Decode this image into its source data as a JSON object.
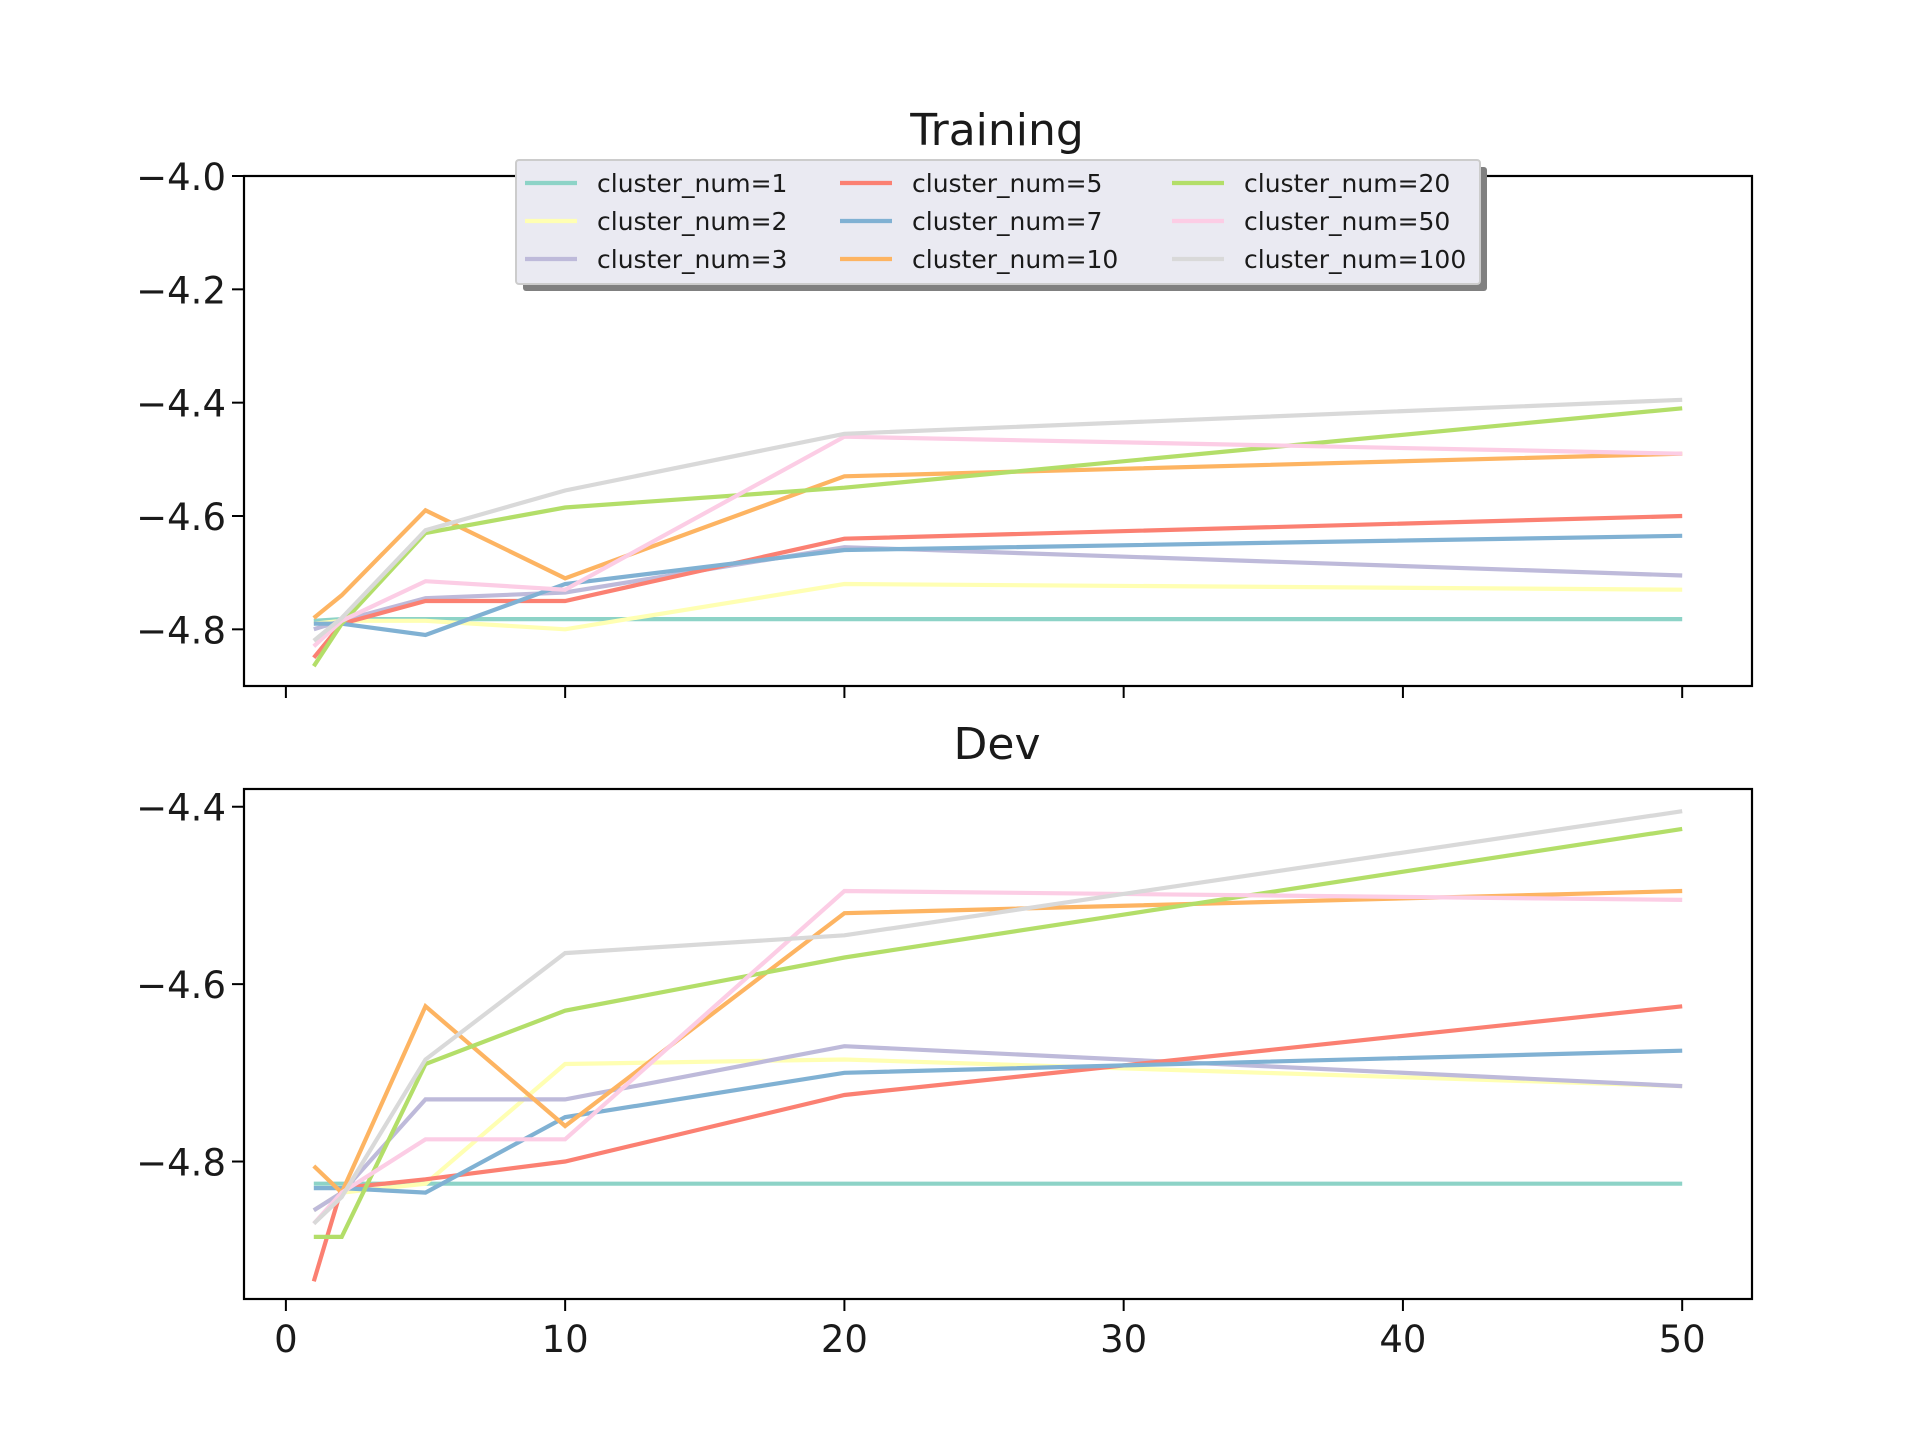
{
  "chart_data": [
    {
      "type": "line",
      "title": "Training",
      "xlabel": "",
      "ylabel": "",
      "x": [
        1,
        2,
        5,
        10,
        20,
        50
      ],
      "xlim": [
        -1.5,
        52.5
      ],
      "ylim": [
        -4.9,
        -4.0
      ],
      "xticks": [
        0,
        10,
        20,
        30,
        40,
        50
      ],
      "xtick_labels_visible": false,
      "yticks": [
        -4.0,
        -4.2,
        -4.4,
        -4.6,
        -4.8
      ],
      "ytick_labels": [
        "−4.0",
        "−4.2",
        "−4.4",
        "−4.6",
        "−4.8"
      ],
      "grid": false,
      "legend": {
        "placement": "top-center",
        "ncol": 3,
        "shadow": true
      },
      "series": [
        {
          "name": "cluster_num=1",
          "color": "#8dd3c7",
          "values": [
            -4.785,
            -4.782,
            -4.782,
            -4.782,
            -4.782,
            -4.782
          ]
        },
        {
          "name": "cluster_num=2",
          "color": "#ffffb3",
          "values": [
            -4.79,
            -4.785,
            -4.785,
            -4.8,
            -4.72,
            -4.73
          ]
        },
        {
          "name": "cluster_num=3",
          "color": "#bebada",
          "values": [
            -4.8,
            -4.785,
            -4.745,
            -4.735,
            -4.655,
            -4.705
          ]
        },
        {
          "name": "cluster_num=5",
          "color": "#fb8072",
          "values": [
            -4.85,
            -4.79,
            -4.75,
            -4.75,
            -4.64,
            -4.6
          ]
        },
        {
          "name": "cluster_num=7",
          "color": "#80b1d3",
          "values": [
            -4.79,
            -4.79,
            -4.81,
            -4.72,
            -4.66,
            -4.635
          ]
        },
        {
          "name": "cluster_num=10",
          "color": "#fdb462",
          "values": [
            -4.78,
            -4.74,
            -4.59,
            -4.71,
            -4.53,
            -4.49
          ]
        },
        {
          "name": "cluster_num=20",
          "color": "#b3de69",
          "values": [
            -4.865,
            -4.79,
            -4.63,
            -4.585,
            -4.55,
            -4.41
          ]
        },
        {
          "name": "cluster_num=50",
          "color": "#fccde5",
          "values": [
            -4.83,
            -4.785,
            -4.715,
            -4.73,
            -4.46,
            -4.49
          ]
        },
        {
          "name": "cluster_num=100",
          "color": "#d9d9d9",
          "values": [
            -4.82,
            -4.78,
            -4.625,
            -4.555,
            -4.455,
            -4.395
          ]
        }
      ]
    },
    {
      "type": "line",
      "title": "Dev",
      "xlabel": "",
      "ylabel": "",
      "x": [
        1,
        2,
        5,
        10,
        20,
        50
      ],
      "xlim": [
        -1.5,
        52.5
      ],
      "ylim": [
        -4.955,
        -4.38
      ],
      "xticks": [
        0,
        10,
        20,
        30,
        40,
        50
      ],
      "xtick_labels": [
        "0",
        "10",
        "20",
        "30",
        "40",
        "50"
      ],
      "yticks": [
        -4.4,
        -4.6,
        -4.8
      ],
      "ytick_labels": [
        "−4.4",
        "−4.6",
        "−4.8"
      ],
      "grid": false,
      "series": [
        {
          "name": "cluster_num=1",
          "color": "#8dd3c7",
          "values": [
            -4.825,
            -4.825,
            -4.825,
            -4.825,
            -4.825,
            -4.825
          ]
        },
        {
          "name": "cluster_num=2",
          "color": "#ffffb3",
          "values": [
            -4.855,
            -4.835,
            -4.825,
            -4.69,
            -4.685,
            -4.715
          ]
        },
        {
          "name": "cluster_num=3",
          "color": "#bebada",
          "values": [
            -4.855,
            -4.835,
            -4.73,
            -4.73,
            -4.67,
            -4.715
          ]
        },
        {
          "name": "cluster_num=5",
          "color": "#fb8072",
          "values": [
            -4.935,
            -4.83,
            -4.82,
            -4.8,
            -4.725,
            -4.625
          ]
        },
        {
          "name": "cluster_num=7",
          "color": "#80b1d3",
          "values": [
            -4.83,
            -4.83,
            -4.835,
            -4.75,
            -4.7,
            -4.675
          ]
        },
        {
          "name": "cluster_num=10",
          "color": "#fdb462",
          "values": [
            -4.805,
            -4.835,
            -4.625,
            -4.76,
            -4.52,
            -4.495
          ]
        },
        {
          "name": "cluster_num=20",
          "color": "#b3de69",
          "values": [
            -4.885,
            -4.885,
            -4.69,
            -4.63,
            -4.57,
            -4.425
          ]
        },
        {
          "name": "cluster_num=50",
          "color": "#fccde5",
          "values": [
            -4.87,
            -4.835,
            -4.775,
            -4.775,
            -4.495,
            -4.505
          ]
        },
        {
          "name": "cluster_num=100",
          "color": "#d9d9d9",
          "values": [
            -4.87,
            -4.84,
            -4.685,
            -4.565,
            -4.545,
            -4.405
          ]
        }
      ]
    }
  ]
}
